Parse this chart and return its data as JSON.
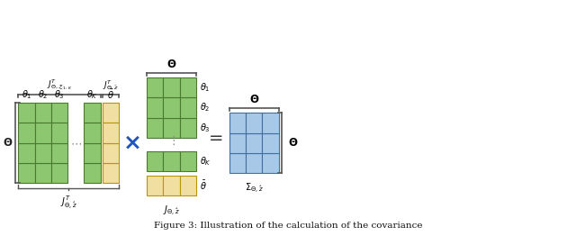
{
  "bg_color": "#ffffff",
  "green_color": "#8DC870",
  "green_edge": "#4a7a30",
  "yellow_color": "#F0DFA0",
  "yellow_edge": "#b8960a",
  "blue_color": "#A8C8E8",
  "blue_edge": "#4070A0",
  "op_color": "#2255BB",
  "bracket_color": "#555555",
  "text_color": "#222222",
  "fig_width": 6.4,
  "fig_height": 2.62
}
